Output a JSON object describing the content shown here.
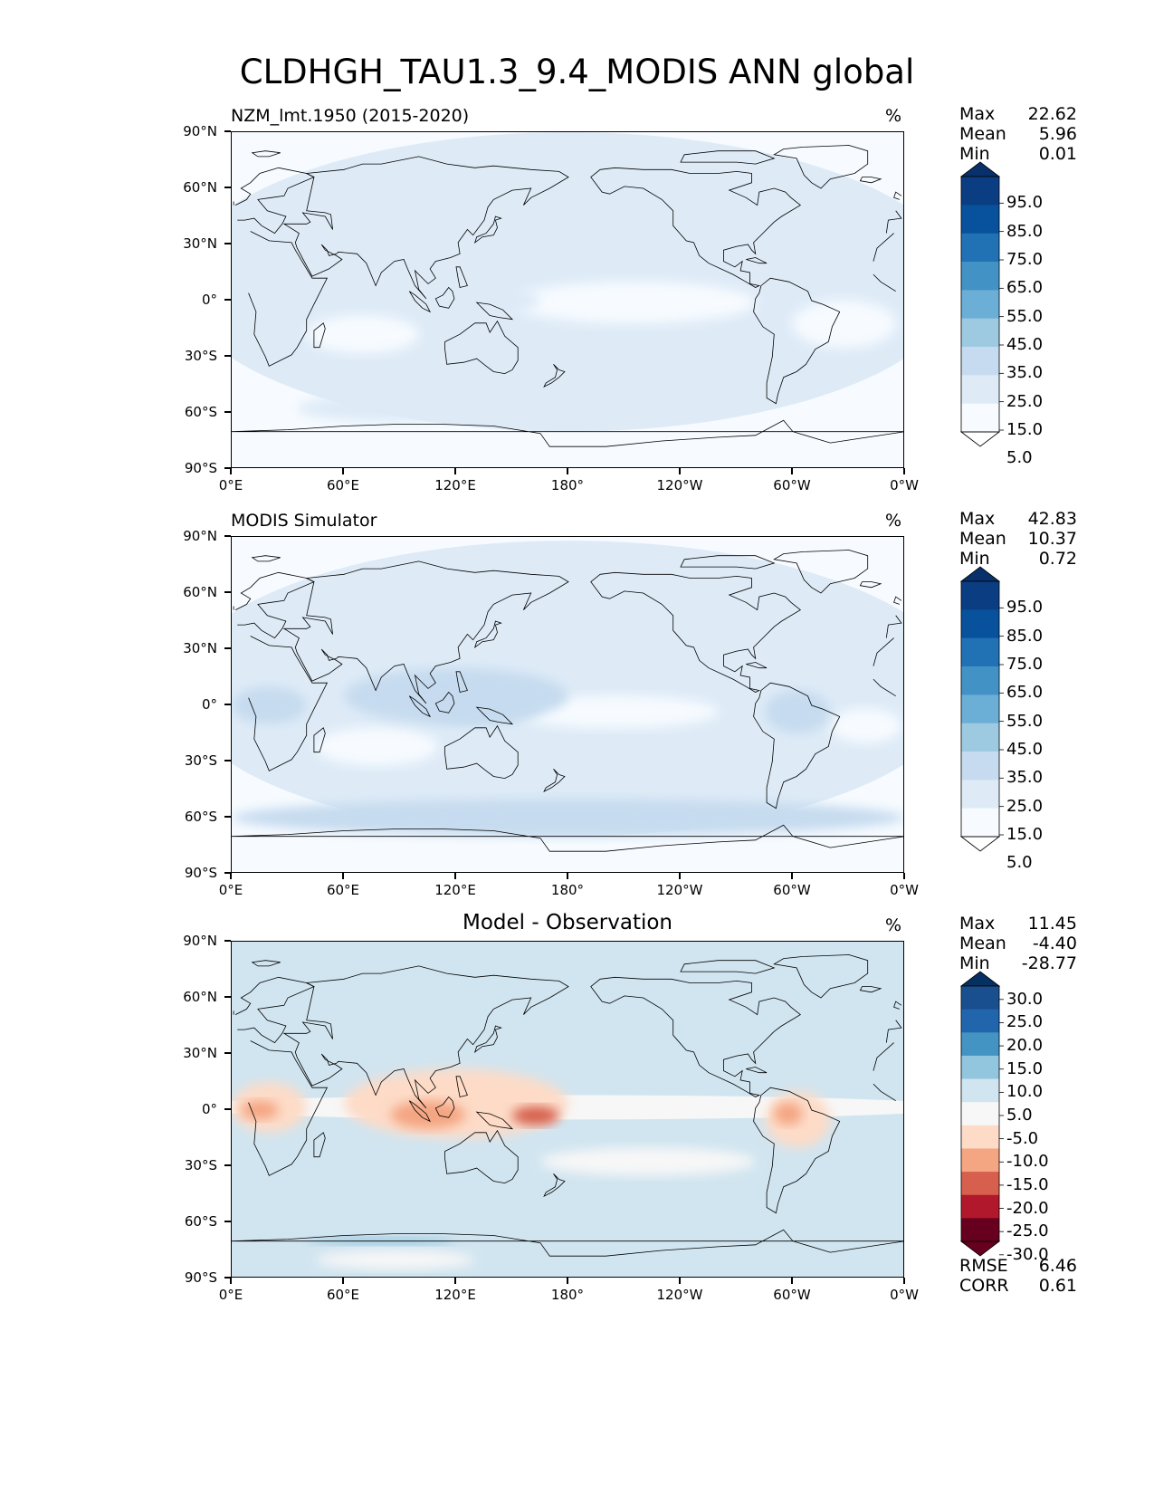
{
  "title": "CLDHGH_TAU1.3_9.4_MODIS ANN global",
  "axes": {
    "lat_labels": [
      "90°N",
      "60°N",
      "30°N",
      "0°",
      "30°S",
      "60°S",
      "90°S"
    ],
    "lon_labels": [
      "0°E",
      "60°E",
      "120°E",
      "180°",
      "120°W",
      "60°W",
      "0°W"
    ]
  },
  "colors": {
    "blues": [
      "#f7fbff",
      "#deebf7",
      "#c6dbef",
      "#9ecae1",
      "#6baed6",
      "#4292c6",
      "#2171b5",
      "#08519c",
      "#08306b"
    ],
    "diverging": [
      "#67001f",
      "#b2182b",
      "#d6604d",
      "#f4a582",
      "#fddbc7",
      "#f7f7f7",
      "#d1e5f0",
      "#92c5de",
      "#4393c3",
      "#2166ac",
      "#053061"
    ]
  },
  "panels": [
    {
      "id": "test",
      "title": "NZM_lmt.1950 (2015-2020)",
      "units": "%",
      "stats": {
        "max_label": "Max",
        "max": "22.62",
        "mean_label": "Mean",
        "mean": "5.96",
        "min_label": "Min",
        "min": "0.01"
      },
      "colorbar_labels": [
        "95.0",
        "85.0",
        "75.0",
        "65.0",
        "55.0",
        "45.0",
        "35.0",
        "25.0",
        "15.0",
        "5.0"
      ]
    },
    {
      "id": "reference",
      "title": "MODIS Simulator",
      "units": "%",
      "stats": {
        "max_label": "Max",
        "max": "42.83",
        "mean_label": "Mean",
        "mean": "10.37",
        "min_label": "Min",
        "min": "0.72"
      },
      "colorbar_labels": [
        "95.0",
        "85.0",
        "75.0",
        "65.0",
        "55.0",
        "45.0",
        "35.0",
        "25.0",
        "15.0",
        "5.0"
      ]
    },
    {
      "id": "difference",
      "title": "Model - Observation",
      "units": "%",
      "stats": {
        "max_label": "Max",
        "max": "11.45",
        "mean_label": "Mean",
        "mean": "-4.40",
        "min_label": "Min",
        "min": "-28.77"
      },
      "colorbar_labels": [
        "30.0",
        "25.0",
        "20.0",
        "15.0",
        "10.0",
        "5.0",
        "-5.0",
        "-10.0",
        "-15.0",
        "-20.0",
        "-25.0",
        "-30.0"
      ],
      "rmse_label": "RMSE",
      "rmse": "6.46",
      "corr_label": "CORR",
      "corr": "0.61"
    }
  ],
  "chart_data": [
    {
      "type": "heatmap",
      "title": "NZM_lmt.1950 (2015-2020)",
      "units": "%",
      "x_range": [
        0,
        360
      ],
      "y_range": [
        -90,
        90
      ],
      "levels": [
        5,
        15,
        25,
        35,
        45,
        55,
        65,
        75,
        85,
        95
      ],
      "max": 22.62,
      "mean": 5.96,
      "min": 0.01,
      "regions": [
        {
          "lon": [
            0,
            360
          ],
          "lat": [
            -90,
            90
          ],
          "value": 3
        },
        {
          "lon": [
            0,
            360
          ],
          "lat": [
            -70,
            90
          ],
          "value": 8
        },
        {
          "lon": [
            150,
            280
          ],
          "lat": [
            -12,
            10
          ],
          "value": 3
        },
        {
          "lon": [
            40,
            100
          ],
          "lat": [
            -28,
            -8
          ],
          "value": 3
        },
        {
          "lon": [
            300,
            355
          ],
          "lat": [
            -25,
            0
          ],
          "value": 3
        },
        {
          "lon": [
            60,
            105
          ],
          "lat": [
            30,
            42
          ],
          "value": 12
        },
        {
          "lon": [
            108,
            165
          ],
          "lat": [
            -8,
            8
          ],
          "value": 12
        },
        {
          "lon": [
            35,
            130
          ],
          "lat": [
            -65,
            -50
          ],
          "value": 11
        }
      ]
    },
    {
      "type": "heatmap",
      "title": "MODIS Simulator",
      "units": "%",
      "x_range": [
        0,
        360
      ],
      "y_range": [
        -90,
        90
      ],
      "levels": [
        5,
        15,
        25,
        35,
        45,
        55,
        65,
        75,
        85,
        95
      ],
      "max": 42.83,
      "mean": 10.37,
      "min": 0.72,
      "regions": [
        {
          "lon": [
            0,
            360
          ],
          "lat": [
            -90,
            90
          ],
          "value": 3
        },
        {
          "lon": [
            0,
            360
          ],
          "lat": [
            -70,
            88
          ],
          "value": 11
        },
        {
          "lon": [
            150,
            260
          ],
          "lat": [
            -12,
            5
          ],
          "value": 3
        },
        {
          "lon": [
            45,
            110
          ],
          "lat": [
            -32,
            -12
          ],
          "value": 3
        },
        {
          "lon": [
            320,
            358
          ],
          "lat": [
            -20,
            -2
          ],
          "value": 3
        },
        {
          "lon": [
            60,
            180
          ],
          "lat": [
            -10,
            20
          ],
          "value": 20
        },
        {
          "lon": [
            95,
            165
          ],
          "lat": [
            -10,
            10
          ],
          "value": 22
        },
        {
          "lon": [
            0,
            40
          ],
          "lat": [
            -10,
            10
          ],
          "value": 19
        },
        {
          "lon": [
            285,
            320
          ],
          "lat": [
            -15,
            8
          ],
          "value": 21
        },
        {
          "lon": [
            0,
            360
          ],
          "lat": [
            -70,
            -50
          ],
          "value": 15
        }
      ]
    },
    {
      "type": "heatmap",
      "title": "Model - Observation",
      "units": "%",
      "x_range": [
        0,
        360
      ],
      "y_range": [
        -90,
        90
      ],
      "levels": [
        -30,
        -25,
        -20,
        -15,
        -10,
        -5,
        5,
        10,
        15,
        20,
        25,
        30
      ],
      "max": 11.45,
      "mean": -4.4,
      "min": -28.77,
      "rmse": 6.46,
      "corr": 0.61,
      "regions": [
        {
          "lon": [
            0,
            360
          ],
          "lat": [
            -90,
            90
          ],
          "value": 0
        },
        {
          "lon": [
            0,
            360
          ],
          "lat": [
            -5,
            8
          ],
          "value": -7
        },
        {
          "lon": [
            60,
            180
          ],
          "lat": [
            -15,
            22
          ],
          "value": -11
        },
        {
          "lon": [
            85,
            125
          ],
          "lat": [
            -10,
            5
          ],
          "value": -17
        },
        {
          "lon": [
            150,
            175
          ],
          "lat": [
            -8,
            2
          ],
          "value": -23
        },
        {
          "lon": [
            0,
            40
          ],
          "lat": [
            -12,
            15
          ],
          "value": -12
        },
        {
          "lon": [
            5,
            25
          ],
          "lat": [
            -5,
            5
          ],
          "value": -18
        },
        {
          "lon": [
            285,
            320
          ],
          "lat": [
            -20,
            10
          ],
          "value": -14
        },
        {
          "lon": [
            290,
            305
          ],
          "lat": [
            -8,
            4
          ],
          "value": -20
        },
        {
          "lon": [
            165,
            280
          ],
          "lat": [
            -35,
            -20
          ],
          "value": -6
        },
        {
          "lon": [
            45,
            130
          ],
          "lat": [
            -85,
            -75
          ],
          "value": -8
        },
        {
          "lon": [
            40,
            120
          ],
          "lat": [
            -72,
            -68
          ],
          "value": 6
        }
      ]
    }
  ]
}
